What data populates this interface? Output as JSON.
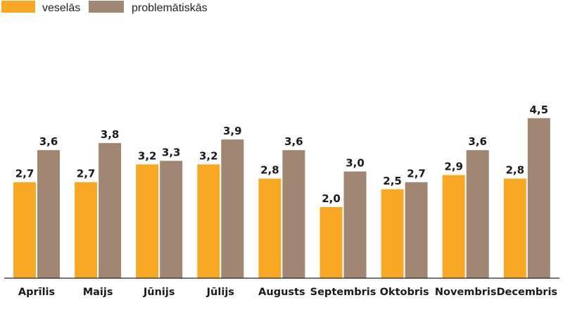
{
  "chart_data": {
    "type": "bar",
    "title": "",
    "xlabel": "",
    "ylabel": "",
    "ylim": [
      0,
      4.7
    ],
    "grid": false,
    "legend_position": "top-left",
    "categories": [
      "Aprīlis",
      "Maijs",
      "Jūnijs",
      "Jūlijs",
      "Augusts",
      "Septembris",
      "Oktobris",
      "Novembris",
      "Decembris"
    ],
    "series": [
      {
        "name": "veselās",
        "color": "#f9a825",
        "values": [
          2.7,
          2.7,
          3.2,
          3.2,
          2.8,
          2.0,
          2.5,
          2.9,
          2.8
        ],
        "labels": [
          "2,7",
          "2,7",
          "3,2",
          "3,2",
          "2,8",
          "2,0",
          "2,5",
          "2,9",
          "2,8"
        ]
      },
      {
        "name": "problemātiskās",
        "color": "#a08673",
        "values": [
          3.6,
          3.8,
          3.3,
          3.9,
          3.6,
          3.0,
          2.7,
          3.6,
          4.5
        ],
        "labels": [
          "3,6",
          "3,8",
          "3,3",
          "3,9",
          "3,6",
          "3,0",
          "2,7",
          "3,6",
          "4,5"
        ]
      }
    ]
  }
}
